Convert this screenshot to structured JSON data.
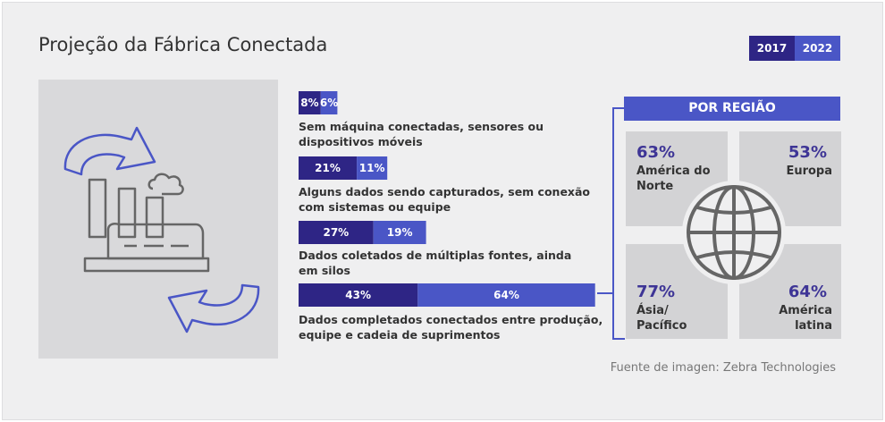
{
  "title": "Projeção da Fábrica Conectada",
  "legend": [
    {
      "label": "2017",
      "color": "#2e2585"
    },
    {
      "label": "2022",
      "color": "#4a56c6"
    }
  ],
  "chart_data": {
    "type": "bar",
    "orientation": "horizontal-stacked",
    "categories": [
      "Sem máquina conectadas, sensores ou dispositivos móveis",
      "Alguns dados sendo capturados, sem conexão com sistemas ou equipe",
      "Dados coletados de múltiplas fontes, ainda em silos",
      "Dados completados conectados entre produção, equipe e cadeia de suprimentos"
    ],
    "series": [
      {
        "name": "2017",
        "values": [
          8,
          21,
          27,
          43
        ],
        "color": "#2e2585"
      },
      {
        "name": "2022",
        "values": [
          6,
          11,
          19,
          64
        ],
        "color": "#4a56c6"
      }
    ],
    "value_suffix": "%"
  },
  "label_lines": [
    [
      "Sem máquina conectadas, sensores ou",
      "dispositivos móveis"
    ],
    [
      "Alguns dados sendo capturados, sem conexão",
      "com sistemas ou equipe"
    ],
    [
      "Dados coletados de múltiplas fontes, ainda",
      "em silos"
    ],
    [
      "Dados completados conectados entre produção,",
      "equipe e cadeia de suprimentos"
    ]
  ],
  "regions": {
    "header": "POR REGIÃO",
    "items": [
      {
        "pct": "63%",
        "name1": "América do",
        "name2": "Norte"
      },
      {
        "pct": "53%",
        "name1": "Europa",
        "name2": ""
      },
      {
        "pct": "77%",
        "name1": "Ásia/",
        "name2": "Pacífico"
      },
      {
        "pct": "64%",
        "name1": "América",
        "name2": "latina"
      }
    ]
  },
  "source": "Fuente de imagen: Zebra Technologies",
  "icons": [
    "factory-icon",
    "recycle-arrow-top-icon",
    "recycle-arrow-bottom-icon",
    "globe-icon"
  ]
}
